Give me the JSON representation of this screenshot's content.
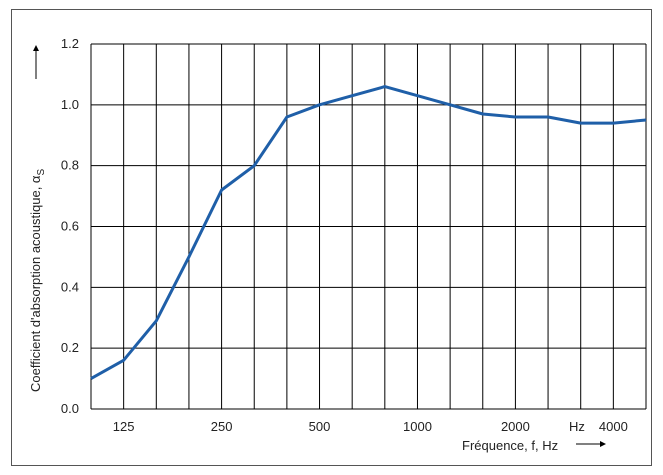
{
  "chart_data": {
    "type": "line",
    "xlabel": "Fréquence, f, Hz",
    "x_unit_label": "Hz",
    "ylabel": "Coefficient d'absorption acoustique, α",
    "ylabel_subscript": "S",
    "x_scale": "log (1/3-octave bands)",
    "x_tick_labels": [
      "125",
      "250",
      "500",
      "1000",
      "2000",
      "4000"
    ],
    "x": [
      100,
      125,
      160,
      200,
      250,
      315,
      400,
      500,
      630,
      800,
      1000,
      1250,
      1600,
      2000,
      2500,
      3150,
      4000,
      5000
    ],
    "series": [
      {
        "values": [
          0.1,
          0.16,
          0.29,
          0.5,
          0.72,
          0.8,
          0.96,
          1.0,
          1.03,
          1.06,
          1.03,
          1.0,
          0.97,
          0.96,
          0.96,
          0.94,
          0.94,
          0.95
        ],
        "color": "#1f5fa8"
      }
    ],
    "y_ticks": [
      "0.0",
      "0.2",
      "0.4",
      "0.6",
      "0.8",
      "1.0",
      "1.2"
    ],
    "ylim": [
      0,
      1.2
    ],
    "grid": true
  }
}
